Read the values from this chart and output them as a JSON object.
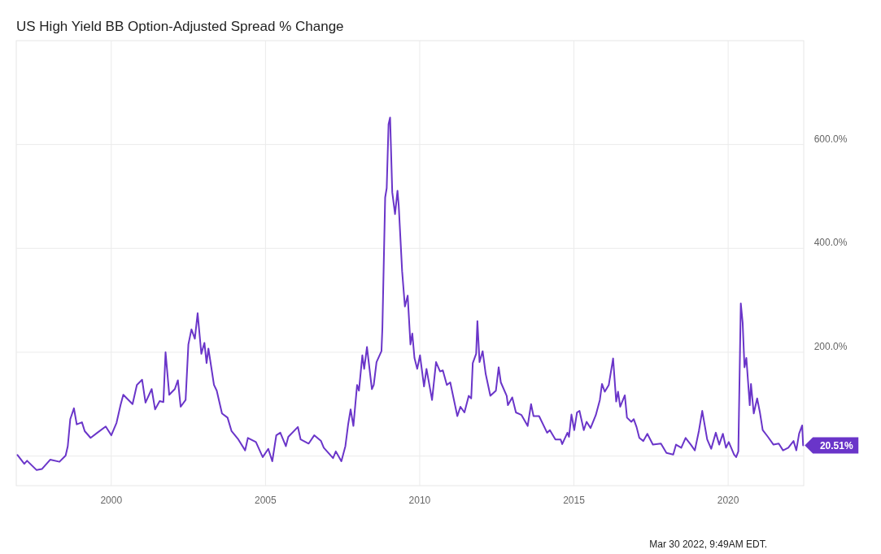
{
  "chart_data": {
    "type": "line",
    "title": "US High Yield BB Option-Adjusted Spread % Change",
    "xlim": [
      1996.92,
      2022.45
    ],
    "xticks": [
      2000,
      2005,
      2010,
      2015,
      2020
    ],
    "ylim": [
      -57,
      800
    ],
    "yticks": [
      {
        "value": 0,
        "label": null
      },
      {
        "value": 200,
        "label": "200.0%"
      },
      {
        "value": 400,
        "label": "400.0%"
      },
      {
        "value": 600,
        "label": "600.0%"
      }
    ],
    "grid": true,
    "series": [
      {
        "color": "#6a35c9",
        "x": [
          1996.96,
          1997.18,
          1997.27,
          1997.58,
          1997.75,
          1998.02,
          1998.32,
          1998.52,
          1998.59,
          1998.67,
          1998.79,
          1998.88,
          1999.05,
          1999.14,
          1999.33,
          1999.55,
          1999.82,
          2000.0,
          2000.17,
          2000.3,
          2000.39,
          2000.69,
          2000.83,
          2001.0,
          2001.11,
          2001.31,
          2001.42,
          2001.57,
          2001.69,
          2001.76,
          2001.88,
          2002.06,
          2002.16,
          2002.25,
          2002.41,
          2002.5,
          2002.6,
          2002.71,
          2002.8,
          2002.92,
          2003.02,
          2003.09,
          2003.15,
          2003.33,
          2003.42,
          2003.59,
          2003.77,
          2003.9,
          2004.12,
          2004.34,
          2004.43,
          2004.69,
          2004.91,
          2005.09,
          2005.22,
          2005.35,
          2005.48,
          2005.66,
          2005.74,
          2006.05,
          2006.14,
          2006.4,
          2006.58,
          2006.8,
          2006.89,
          2007.19,
          2007.28,
          2007.46,
          2007.59,
          2007.68,
          2007.76,
          2007.85,
          2007.97,
          2008.03,
          2008.14,
          2008.2,
          2008.29,
          2008.45,
          2008.51,
          2008.6,
          2008.76,
          2008.79,
          2008.88,
          2008.93,
          2008.99,
          2009.04,
          2009.11,
          2009.2,
          2009.28,
          2009.32,
          2009.43,
          2009.52,
          2009.61,
          2009.7,
          2009.76,
          2009.83,
          2009.92,
          2010.01,
          2010.14,
          2010.22,
          2010.4,
          2010.53,
          2010.66,
          2010.75,
          2010.88,
          2010.99,
          2011.22,
          2011.32,
          2011.45,
          2011.59,
          2011.67,
          2011.72,
          2011.83,
          2011.87,
          2011.94,
          2012.04,
          2012.14,
          2012.29,
          2012.47,
          2012.56,
          2012.63,
          2012.82,
          2012.86,
          2013.0,
          2013.12,
          2013.3,
          2013.5,
          2013.61,
          2013.69,
          2013.87,
          2014.13,
          2014.22,
          2014.4,
          2014.57,
          2014.62,
          2014.79,
          2014.84,
          2014.92,
          2015.01,
          2015.1,
          2015.18,
          2015.32,
          2015.41,
          2015.54,
          2015.71,
          2015.84,
          2015.91,
          2016.0,
          2016.13,
          2016.27,
          2016.37,
          2016.43,
          2016.5,
          2016.65,
          2016.72,
          2016.86,
          2016.94,
          2017.03,
          2017.12,
          2017.25,
          2017.38,
          2017.56,
          2017.82,
          2018.0,
          2018.22,
          2018.31,
          2018.48,
          2018.62,
          2018.79,
          2018.92,
          2019.05,
          2019.16,
          2019.32,
          2019.45,
          2019.6,
          2019.71,
          2019.83,
          2019.93,
          2020.02,
          2020.19,
          2020.26,
          2020.33,
          2020.41,
          2020.47,
          2020.53,
          2020.59,
          2020.7,
          2020.74,
          2020.83,
          2020.94,
          2021.03,
          2021.12,
          2021.29,
          2021.47,
          2021.64,
          2021.78,
          2021.95,
          2022.12,
          2022.21,
          2022.3,
          2022.4,
          2022.43
        ],
        "values": [
          2,
          -15,
          -9,
          -27,
          -25,
          -7,
          -11,
          1,
          19,
          71,
          92,
          61,
          65,
          48,
          35,
          45,
          57,
          40,
          64,
          98,
          118,
          100,
          137,
          147,
          103,
          129,
          90,
          106,
          104,
          200,
          118,
          129,
          146,
          95,
          108,
          215,
          244,
          226,
          275,
          197,
          218,
          179,
          207,
          137,
          126,
          82,
          74,
          48,
          32,
          11,
          35,
          27,
          -2,
          14,
          -10,
          40,
          45,
          19,
          37,
          56,
          32,
          24,
          40,
          29,
          16,
          -4,
          9,
          -10,
          19,
          61,
          90,
          58,
          137,
          126,
          194,
          168,
          210,
          129,
          137,
          181,
          202,
          247,
          498,
          516,
          639,
          652,
          508,
          466,
          511,
          482,
          356,
          288,
          309,
          215,
          236,
          189,
          168,
          194,
          134,
          168,
          108,
          181,
          163,
          165,
          137,
          142,
          77,
          95,
          84,
          116,
          111,
          179,
          197,
          260,
          181,
          202,
          158,
          116,
          126,
          171,
          142,
          116,
          98,
          113,
          84,
          79,
          58,
          100,
          77,
          77,
          45,
          50,
          32,
          32,
          23,
          45,
          37,
          80,
          50,
          84,
          87,
          50,
          66,
          54,
          79,
          108,
          139,
          124,
          137,
          188,
          105,
          124,
          95,
          117,
          74,
          66,
          71,
          56,
          35,
          29,
          43,
          22,
          24,
          6,
          3,
          22,
          16,
          35,
          22,
          11,
          48,
          87,
          32,
          14,
          45,
          22,
          43,
          16,
          27,
          3,
          -2,
          9,
          294,
          257,
          171,
          189,
          98,
          139,
          82,
          111,
          84,
          50,
          37,
          22,
          24,
          11,
          16,
          29,
          11,
          43,
          59,
          20.51
        ]
      }
    ],
    "annotations": [
      {
        "text": "20.51%",
        "x": 2022.43,
        "y": 20.51
      },
      "Mar 30 2022, 9:49AM EDT."
    ]
  }
}
